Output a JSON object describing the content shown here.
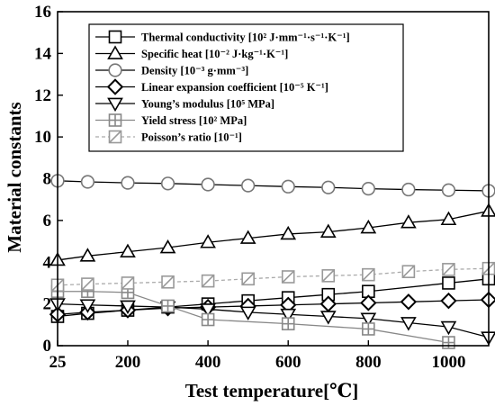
{
  "chart_data": {
    "type": "line",
    "xlabel": "Test temperature[℃]",
    "ylabel": "Material constants",
    "xlim": [
      25,
      1100
    ],
    "ylim": [
      0,
      16
    ],
    "xticks": [
      25,
      200,
      400,
      600,
      800,
      1000
    ],
    "yticks": [
      0,
      2,
      4,
      6,
      8,
      10,
      12,
      14,
      16
    ],
    "grid": false,
    "legend_position": "top-center",
    "series": [
      {
        "name": "Thermal conductivity [10² J·mm⁻¹·s⁻¹·K⁻¹]",
        "marker": "square",
        "color": "#000000",
        "line_color": "#000000",
        "dashed": false,
        "x": [
          25,
          100,
          200,
          300,
          400,
          500,
          600,
          700,
          800,
          1000,
          1100
        ],
        "y": [
          1.4,
          1.55,
          1.7,
          1.85,
          2.0,
          2.15,
          2.3,
          2.45,
          2.6,
          3.0,
          3.2
        ]
      },
      {
        "name": "Specific heat [10⁻² J·kg⁻¹·K⁻¹]",
        "marker": "triangle-up",
        "color": "#000000",
        "line_color": "#000000",
        "dashed": false,
        "x": [
          25,
          100,
          200,
          300,
          400,
          500,
          600,
          700,
          800,
          900,
          1000,
          1100
        ],
        "y": [
          4.1,
          4.3,
          4.5,
          4.7,
          4.95,
          5.15,
          5.35,
          5.45,
          5.65,
          5.9,
          6.05,
          6.45
        ]
      },
      {
        "name": "Density [10⁻³ g·mm⁻³]",
        "marker": "circle",
        "color": "#777777",
        "line_color": "#000000",
        "dashed": false,
        "x": [
          25,
          100,
          200,
          300,
          400,
          500,
          600,
          700,
          800,
          900,
          1000,
          1100
        ],
        "y": [
          7.9,
          7.85,
          7.8,
          7.77,
          7.72,
          7.67,
          7.62,
          7.58,
          7.52,
          7.48,
          7.45,
          7.42
        ]
      },
      {
        "name": "Linear expansion coefficient [10⁻⁵ K⁻¹]",
        "marker": "diamond",
        "color": "#000000",
        "line_color": "#000000",
        "dashed": false,
        "x": [
          25,
          100,
          200,
          300,
          400,
          500,
          600,
          700,
          800,
          900,
          1000,
          1100
        ],
        "y": [
          1.5,
          1.6,
          1.7,
          1.8,
          1.85,
          1.9,
          1.95,
          2.0,
          2.05,
          2.1,
          2.15,
          2.2
        ]
      },
      {
        "name": "Young’s modulus [10⁵ MPa]",
        "marker": "triangle-down",
        "color": "#000000",
        "line_color": "#000000",
        "dashed": false,
        "x": [
          25,
          100,
          200,
          300,
          400,
          500,
          600,
          700,
          800,
          900,
          1000,
          1100
        ],
        "y": [
          2.0,
          1.95,
          1.9,
          1.85,
          1.75,
          1.6,
          1.5,
          1.4,
          1.3,
          1.1,
          0.9,
          0.4
        ]
      },
      {
        "name": "Yield stress [10² MPa]",
        "marker": "square-plus",
        "color": "#888888",
        "line_color": "#888888",
        "dashed": false,
        "x": [
          25,
          100,
          200,
          300,
          400,
          600,
          800,
          1000
        ],
        "y": [
          2.6,
          2.6,
          2.55,
          1.9,
          1.25,
          1.05,
          0.8,
          0.15
        ]
      },
      {
        "name": "Poisson’s ratio [10⁻¹]",
        "marker": "square-slash",
        "color": "#999999",
        "line_color": "#aaaaaa",
        "dashed": true,
        "x": [
          25,
          100,
          200,
          300,
          400,
          500,
          600,
          700,
          800,
          900,
          1000,
          1100
        ],
        "y": [
          2.9,
          2.95,
          3.0,
          3.05,
          3.1,
          3.2,
          3.3,
          3.35,
          3.4,
          3.55,
          3.65,
          3.7
        ]
      }
    ]
  }
}
